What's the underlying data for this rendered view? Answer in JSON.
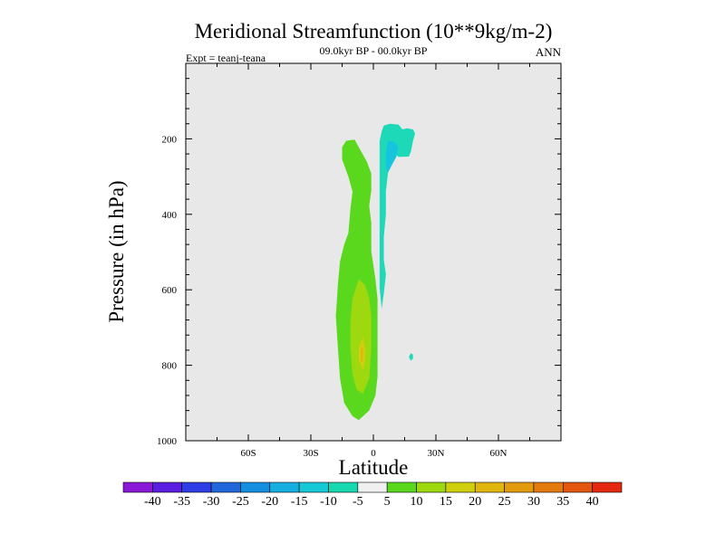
{
  "chart_data": {
    "type": "heatmap",
    "title": "Meridional Streamfunction (10**9kg/m-2)",
    "subtitle": "09.0kyr BP - 00.0kyr BP",
    "left_label": "Expt = teanj-teana",
    "right_label": "ANN",
    "xlabel": "Latitude",
    "ylabel": "Pressure (in hPa)",
    "xlim": [
      -90,
      90
    ],
    "ylim": [
      0,
      1000
    ],
    "y_reversed": true,
    "x_ticks": [
      {
        "value": -60,
        "label": "60S"
      },
      {
        "value": -30,
        "label": "30S"
      },
      {
        "value": 0,
        "label": "0"
      },
      {
        "value": 30,
        "label": "30N"
      },
      {
        "value": 60,
        "label": "60N"
      }
    ],
    "y_ticks": [
      {
        "value": 200,
        "label": "200"
      },
      {
        "value": 400,
        "label": "400"
      },
      {
        "value": 600,
        "label": "600"
      },
      {
        "value": 800,
        "label": "800"
      },
      {
        "value": 1000,
        "label": "1000"
      }
    ],
    "background_color": "#e8e8e8",
    "colorbar": {
      "colors": [
        "#8a18d6",
        "#5a1ee0",
        "#2f3ee4",
        "#2266dc",
        "#168ee0",
        "#16aee0",
        "#16c8d6",
        "#18d8b0",
        "#f0f0f0",
        "#5ad81e",
        "#9ed80e",
        "#cfcf0e",
        "#e0b60e",
        "#e39a0e",
        "#e37a0e",
        "#e3560e",
        "#e32a0e"
      ],
      "labels": [
        "-40",
        "-35",
        "-30",
        "-25",
        "-20",
        "-15",
        "-10",
        "-5",
        "5",
        "10",
        "15",
        "20",
        "25",
        "30",
        "35",
        "40"
      ]
    },
    "contours": [
      {
        "level": "-10 to -5",
        "color": "#1ed9b8",
        "points": [
          [
            5,
            165
          ],
          [
            8,
            160
          ],
          [
            12,
            162
          ],
          [
            14,
            175
          ],
          [
            16,
            172
          ],
          [
            19,
            175
          ],
          [
            20,
            186
          ],
          [
            19,
            206
          ],
          [
            18,
            234
          ],
          [
            17,
            247
          ],
          [
            12,
            248
          ],
          [
            10,
            238
          ],
          [
            7,
            248
          ],
          [
            7,
            290
          ],
          [
            6,
            340
          ],
          [
            6,
            400
          ],
          [
            5,
            460
          ],
          [
            5,
            520
          ],
          [
            6,
            560
          ],
          [
            5,
            610
          ],
          [
            4,
            650
          ],
          [
            3,
            595
          ],
          [
            3,
            540
          ],
          [
            3,
            480
          ],
          [
            3,
            420
          ],
          [
            3,
            360
          ],
          [
            3,
            300
          ],
          [
            3,
            250
          ],
          [
            3,
            205
          ],
          [
            4,
            180
          ]
        ]
      },
      {
        "level": "-15 to -10",
        "color": "#16c4de",
        "points": [
          [
            7,
            205
          ],
          [
            10,
            208
          ],
          [
            12,
            222
          ],
          [
            11,
            248
          ],
          [
            9,
            268
          ],
          [
            7,
            290
          ],
          [
            6,
            270
          ],
          [
            6,
            240
          ]
        ]
      },
      {
        "level": "-10 to -5",
        "color": "#1ed9b8",
        "points": [
          [
            18,
            768
          ],
          [
            19,
            772
          ],
          [
            19,
            782
          ],
          [
            18,
            788
          ],
          [
            17,
            778
          ]
        ]
      },
      {
        "level": "5 to 10",
        "color": "#5ad81e",
        "points": [
          [
            -13,
            205
          ],
          [
            -9,
            202
          ],
          [
            -6,
            232
          ],
          [
            -3,
            262
          ],
          [
            -1,
            292
          ],
          [
            -1,
            337
          ],
          [
            -2,
            377
          ],
          [
            -1,
            423
          ],
          [
            -1,
            498
          ],
          [
            1,
            572
          ],
          [
            2,
            625
          ],
          [
            2,
            680
          ],
          [
            2,
            760
          ],
          [
            2,
            830
          ],
          [
            1,
            880
          ],
          [
            -2,
            920
          ],
          [
            -7,
            945
          ],
          [
            -10,
            935
          ],
          [
            -14,
            900
          ],
          [
            -16,
            835
          ],
          [
            -17,
            755
          ],
          [
            -18,
            670
          ],
          [
            -17,
            585
          ],
          [
            -16,
            525
          ],
          [
            -14,
            480
          ],
          [
            -12,
            450
          ],
          [
            -11,
            385
          ],
          [
            -10,
            340
          ],
          [
            -12,
            300
          ],
          [
            -15,
            255
          ],
          [
            -15,
            222
          ]
        ]
      },
      {
        "level": "10 to 15",
        "color": "#9ed80e",
        "points": [
          [
            -7,
            572
          ],
          [
            -4,
            587
          ],
          [
            -2,
            622
          ],
          [
            -1,
            672
          ],
          [
            -1,
            752
          ],
          [
            -2,
            835
          ],
          [
            -5,
            875
          ],
          [
            -8,
            865
          ],
          [
            -10,
            825
          ],
          [
            -11,
            752
          ],
          [
            -11,
            682
          ],
          [
            -10,
            622
          ]
        ]
      },
      {
        "level": "15 to 20",
        "color": "#cfcf0e",
        "points": [
          [
            -5,
            725
          ],
          [
            -4,
            752
          ],
          [
            -4,
            787
          ],
          [
            -5,
            812
          ],
          [
            -7,
            787
          ],
          [
            -7,
            752
          ]
        ]
      },
      {
        "level": "20 to 25",
        "color": "#e0b60e",
        "points": [
          [
            -5,
            752
          ],
          [
            -5,
            787
          ],
          [
            -6,
            792
          ],
          [
            -6,
            757
          ]
        ]
      }
    ]
  }
}
